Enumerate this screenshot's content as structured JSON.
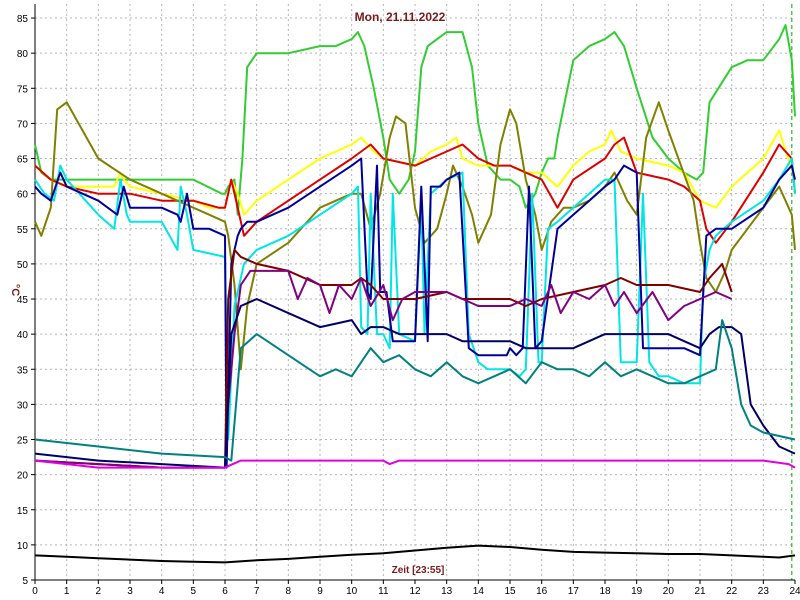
{
  "chart_data": {
    "type": "line",
    "title": "Mon, 21.11.2022",
    "xlabel": "Zeit [23:55]",
    "ylabel": "°C",
    "xlim": [
      0,
      24
    ],
    "ylim": [
      5,
      87
    ],
    "x_ticks": [
      "0",
      "1",
      "2",
      "3",
      "4",
      "5",
      "6",
      "7",
      "8",
      "9",
      "10",
      "11",
      "12",
      "13",
      "14",
      "15",
      "16",
      "17",
      "18",
      "19",
      "20",
      "21",
      "22",
      "23",
      "24"
    ],
    "y_ticks": [
      "5",
      "10",
      "15",
      "20",
      "25",
      "30",
      "35",
      "40",
      "45",
      "50",
      "55",
      "60",
      "65",
      "70",
      "75",
      "80",
      "85"
    ],
    "grid": true,
    "marker_x": 23.9,
    "series": [
      {
        "color": "#33cc33",
        "x": [
          0,
          0.2,
          0.5,
          2,
          3,
          4,
          5,
          5.9,
          6,
          6.1,
          6.3,
          6.4,
          6.55,
          6.7,
          7,
          8,
          9,
          9.5,
          10,
          10.2,
          10.4,
          10.7,
          11,
          11.2,
          11.5,
          11.8,
          12,
          12.2,
          12.4,
          13,
          13.5,
          13.8,
          14,
          14.3,
          14.7,
          15,
          15.3,
          15.5,
          15.8,
          16,
          16.2,
          16.4,
          16.5,
          17,
          17.5,
          18,
          18.3,
          18.6,
          19,
          19.5,
          20,
          20.5,
          20.9,
          21.1,
          21.3,
          22,
          22.5,
          23,
          23.5,
          23.7,
          23.9,
          24
        ],
        "y": [
          67,
          63,
          62,
          62,
          62,
          62,
          62,
          60,
          60,
          61,
          62,
          57,
          65,
          78,
          80,
          80,
          81,
          81,
          82,
          83,
          81,
          75,
          68,
          62,
          60,
          62,
          66,
          78,
          81,
          83,
          83,
          78,
          70,
          64,
          62,
          62,
          61,
          58,
          60,
          63,
          65,
          65,
          68,
          79,
          81,
          82,
          83,
          81,
          75,
          68,
          65,
          63,
          62,
          63,
          73,
          78,
          79,
          79,
          82,
          84,
          79,
          71
        ]
      },
      {
        "color": "#ffff00",
        "x": [
          0,
          0.5,
          1,
          2,
          2.5,
          2.7,
          2.8,
          3,
          4,
          5,
          5.5,
          6,
          6.2,
          6.4,
          6.6,
          7,
          8,
          9,
          10,
          10.3,
          10.5,
          10.7,
          11,
          12,
          12.5,
          13,
          13.3,
          13.5,
          14,
          15,
          15.5,
          16,
          16.5,
          17,
          17.5,
          18,
          18.2,
          18.5,
          19,
          20,
          20.5,
          21,
          21.5,
          22,
          23,
          23.5,
          24
        ],
        "y": [
          64,
          62,
          61,
          61,
          61,
          63,
          62,
          61,
          60,
          59,
          58,
          58,
          62,
          60,
          57,
          59,
          62,
          65,
          67,
          68,
          67,
          66,
          65,
          64,
          66,
          67,
          68,
          65,
          64,
          64,
          63,
          63,
          61,
          64,
          66,
          67,
          69,
          66,
          65,
          64,
          63,
          59,
          58,
          61,
          65,
          69,
          62
        ]
      },
      {
        "color": "#dd0000",
        "x": [
          0,
          0.5,
          1,
          2,
          3,
          4,
          5,
          5.8,
          6,
          6.2,
          6.4,
          6.6,
          7,
          8,
          9,
          10,
          10.3,
          10.6,
          11,
          12,
          12.5,
          13,
          13.5,
          14,
          14.5,
          15,
          15.5,
          16,
          16.5,
          17,
          18,
          18.3,
          18.6,
          19,
          20,
          20.5,
          21,
          21.2,
          21.5,
          22,
          23,
          23.5,
          23.9,
          24
        ],
        "y": [
          64,
          62,
          61,
          60,
          60,
          59,
          59,
          58,
          58,
          62,
          58,
          54,
          56,
          59,
          62,
          65,
          66,
          67,
          65,
          64,
          65,
          66,
          67,
          65,
          64,
          64,
          63,
          62,
          58,
          62,
          65,
          67,
          68,
          63,
          62,
          61,
          59,
          55,
          53,
          56,
          63,
          67,
          65,
          60
        ]
      },
      {
        "color": "#808000",
        "x": [
          0,
          0.2,
          0.5,
          0.7,
          1,
          1.5,
          2,
          3,
          4,
          5,
          5.5,
          6,
          6.1,
          6.3,
          6.5,
          6.7,
          7,
          8,
          9,
          9.5,
          10,
          10.3,
          10.6,
          10.9,
          11.2,
          11.4,
          11.7,
          11.9,
          12,
          12.3,
          12.7,
          13,
          13.2,
          13.5,
          13.8,
          14,
          14.4,
          14.7,
          15,
          15.2,
          15.5,
          15.8,
          16,
          16.3,
          16.7,
          17,
          17.5,
          18,
          18.3,
          18.7,
          19,
          19.3,
          19.7,
          20,
          20.4,
          20.8,
          21,
          21.2,
          21.5,
          21.8,
          22,
          22.5,
          23,
          23.5,
          23.9,
          24
        ],
        "y": [
          56,
          54,
          58,
          72,
          73,
          69,
          65,
          62,
          60,
          58,
          57,
          56,
          54,
          47,
          35,
          44,
          50,
          53,
          58,
          59,
          60,
          60,
          55,
          60,
          68,
          71,
          70,
          62,
          58,
          53,
          55,
          60,
          64,
          61,
          57,
          53,
          57,
          67,
          72,
          70,
          62,
          57,
          52,
          56,
          58,
          58,
          59,
          61,
          63,
          59,
          57,
          68,
          73,
          69,
          64,
          59,
          53,
          48,
          46,
          49,
          52,
          55,
          58,
          61,
          57,
          52
        ]
      },
      {
        "color": "#00e5e5",
        "x": [
          0,
          0.3,
          0.6,
          0.8,
          1,
          2,
          2.5,
          2.7,
          2.9,
          3,
          4,
          4.5,
          4.6,
          4.8,
          5,
          6,
          6.1,
          6.3,
          6.6,
          7,
          8,
          9,
          10,
          10.2,
          10.3,
          10.5,
          10.6,
          10.8,
          11,
          11.2,
          11.3,
          11.5,
          12,
          12.2,
          12.3,
          12.5,
          13,
          13.5,
          13.7,
          14,
          14.3,
          15,
          15.3,
          15.5,
          15.7,
          15.9,
          16,
          16.2,
          16.5,
          17,
          17.5,
          18,
          18.3,
          18.5,
          19,
          19.2,
          19.4,
          19.7,
          20,
          20.5,
          21,
          21.1,
          21.3,
          21.5,
          22,
          23,
          23.5,
          23.9,
          24
        ],
        "y": [
          62,
          60,
          59,
          64,
          62,
          57,
          55,
          62,
          57,
          56,
          56,
          52,
          61,
          57,
          52,
          51,
          25,
          44,
          50,
          52,
          54,
          57,
          60,
          61,
          41,
          40,
          60,
          40,
          40,
          38,
          60,
          40,
          39,
          59,
          40,
          60,
          62,
          63,
          40,
          36,
          35,
          35,
          34,
          35,
          60,
          36,
          36,
          55,
          56,
          58,
          60,
          62,
          62,
          36,
          36,
          60,
          36,
          34,
          34,
          33,
          33,
          47,
          52,
          54,
          56,
          59,
          62,
          65,
          60
        ]
      },
      {
        "color": "#000099",
        "x": [
          0,
          0.2,
          0.5,
          0.8,
          1,
          2,
          2.6,
          2.8,
          3,
          4,
          4.5,
          4.6,
          4.8,
          5,
          5.5,
          6,
          6.05,
          6.2,
          6.4,
          6.5,
          6.7,
          7,
          8,
          9,
          10,
          10.3,
          10.5,
          10.6,
          10.8,
          10.9,
          11.1,
          11.3,
          11.5,
          11.8,
          12,
          12.2,
          12.4,
          12.5,
          12.8,
          13,
          13.4,
          13.7,
          14,
          14.5,
          14.9,
          15,
          15.2,
          15.4,
          15.6,
          15.8,
          16,
          16.5,
          17,
          17.5,
          18,
          18.3,
          18.6,
          19,
          19.2,
          19.5,
          20,
          20.5,
          21,
          21.2,
          21.5,
          22,
          23,
          23.5,
          23.9,
          24
        ],
        "y": [
          61,
          60,
          59,
          63,
          61,
          59,
          57,
          61,
          58,
          58,
          57,
          56,
          60,
          55,
          55,
          54,
          21,
          50,
          54,
          55,
          56,
          56,
          58,
          61,
          64,
          65,
          46,
          45,
          64,
          46,
          46,
          39,
          39,
          39,
          39,
          61,
          39,
          61,
          61,
          62,
          63,
          38,
          37,
          37,
          37,
          38,
          37,
          38,
          61,
          38,
          39,
          55,
          57,
          59,
          61,
          62,
          64,
          63,
          38,
          38,
          38,
          38,
          37,
          54,
          55,
          55,
          58,
          62,
          64,
          62
        ]
      },
      {
        "color": "#800000",
        "x": [
          0,
          2,
          4,
          6,
          6.1,
          6.3,
          6.5,
          7,
          8,
          9,
          10,
          10.3,
          10.6,
          11,
          12,
          13,
          13.5,
          14,
          15,
          15.5,
          16,
          17,
          18,
          18.5,
          19,
          20,
          21,
          21.3,
          21.7,
          22
        ],
        "y": [
          22,
          21.5,
          21,
          21,
          45,
          52,
          51,
          50,
          49,
          47,
          47,
          48,
          47,
          45,
          45,
          46,
          45,
          45,
          45,
          44,
          45,
          46,
          47,
          48,
          47,
          47,
          46,
          48,
          50,
          46
        ]
      },
      {
        "color": "#800080",
        "x": [
          0,
          2,
          4,
          6,
          6.1,
          6.3,
          6.5,
          6.8,
          7,
          8,
          8.3,
          8.6,
          9,
          9.3,
          9.6,
          10,
          10.3,
          10.6,
          11,
          11.3,
          11.6,
          12,
          13,
          13.5,
          14,
          14.5,
          15,
          15.5,
          16,
          16.3,
          16.6,
          17,
          17.5,
          18,
          18.3,
          18.6,
          19,
          19.5,
          20,
          20.5,
          21,
          21.5,
          22
        ],
        "y": [
          22,
          21.5,
          21,
          21,
          30,
          40,
          47,
          49,
          49,
          49,
          45,
          48,
          47,
          43,
          47,
          45,
          48,
          44,
          47,
          42,
          45,
          46,
          46,
          45,
          44,
          44,
          44,
          45,
          44,
          47,
          43,
          46,
          45,
          47,
          44,
          46,
          43,
          46,
          42,
          44,
          45,
          46,
          45
        ]
      },
      {
        "color": "#000066",
        "x": [
          0,
          2,
          4,
          6,
          6.2,
          6.5,
          7,
          8,
          8.5,
          9,
          10,
          10.3,
          10.6,
          11,
          11.5,
          12,
          13,
          13.5,
          14,
          15,
          15.5,
          16,
          17,
          18,
          18.5,
          19,
          20,
          20.5,
          21,
          21.3,
          21.6,
          22,
          22.3,
          22.6,
          23,
          23.5,
          24
        ],
        "y": [
          23,
          22,
          21.5,
          21,
          40,
          44,
          45,
          43,
          42,
          41,
          42,
          40,
          41,
          41,
          40,
          40,
          40,
          39,
          39,
          39,
          38,
          38,
          38,
          40,
          40,
          40,
          40,
          39,
          38,
          40,
          41,
          41,
          40,
          30,
          27,
          24,
          23
        ]
      },
      {
        "color": "#008080",
        "x": [
          0,
          2,
          4,
          6,
          6.2,
          6.5,
          7,
          8,
          9,
          9.5,
          10,
          10.3,
          10.6,
          11,
          11.5,
          12,
          12.5,
          13,
          13.5,
          14,
          14.5,
          15,
          15.5,
          16,
          16.5,
          17,
          17.5,
          18,
          18.5,
          19,
          19.5,
          20,
          20.5,
          21,
          21.5,
          21.7,
          22,
          22.3,
          22.6,
          23,
          23.5,
          24
        ],
        "y": [
          25,
          24,
          23,
          22.5,
          22,
          38,
          40,
          37,
          34,
          35,
          34,
          36,
          38,
          36,
          37,
          35,
          34,
          36,
          34,
          33,
          34,
          35,
          33,
          36,
          35,
          35,
          34,
          36,
          34,
          35,
          34,
          33,
          33,
          34,
          35,
          42,
          38,
          30,
          27,
          26,
          25.5,
          25
        ]
      },
      {
        "color": "#e000e0",
        "x": [
          0,
          1,
          2,
          4,
          6,
          6.5,
          7,
          8,
          10,
          11,
          11.2,
          11.5,
          12,
          14,
          16,
          18,
          20,
          21,
          22,
          23,
          23.8,
          24
        ],
        "y": [
          22,
          21.5,
          21,
          21,
          21,
          22,
          22,
          22,
          22,
          22,
          21.5,
          22,
          22,
          22,
          22,
          22,
          22,
          22,
          22,
          22,
          21.5,
          21
        ]
      },
      {
        "color": "#000000",
        "x": [
          0,
          1,
          2,
          3,
          4,
          5,
          6,
          7,
          8,
          9,
          10,
          11,
          12,
          13,
          14,
          15,
          16,
          17,
          18,
          19,
          20,
          21,
          22,
          23,
          23.5,
          24
        ],
        "y": [
          8.5,
          8.3,
          8.1,
          7.9,
          7.7,
          7.6,
          7.5,
          7.8,
          8.0,
          8.3,
          8.6,
          8.8,
          9.2,
          9.6,
          9.9,
          9.7,
          9.3,
          9.0,
          8.9,
          8.8,
          8.7,
          8.7,
          8.5,
          8.3,
          8.2,
          8.5
        ]
      }
    ]
  }
}
